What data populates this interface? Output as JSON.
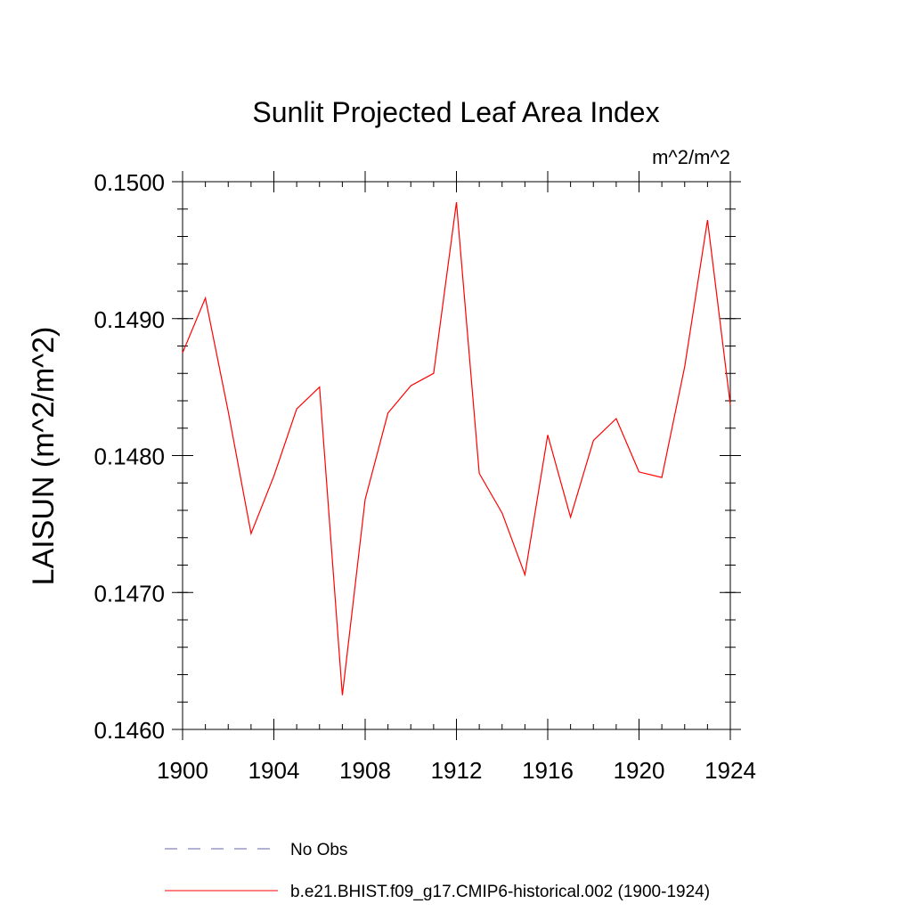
{
  "chart_data": {
    "type": "line",
    "title": "Sunlit Projected Leaf Area Index",
    "units_label": "m^2/m^2",
    "ylabel": "LAISUN  (m^2/m^2)",
    "xlabel": "",
    "xlim": [
      1900,
      1924
    ],
    "ylim": [
      0.146,
      0.15
    ],
    "x_ticks": [
      1900,
      1904,
      1908,
      1912,
      1916,
      1920,
      1924
    ],
    "x_tick_labels": [
      "1900",
      "1904",
      "1908",
      "1912",
      "1916",
      "1920",
      "1924"
    ],
    "y_ticks": [
      0.146,
      0.147,
      0.148,
      0.149,
      0.15
    ],
    "y_tick_labels": [
      "0.1460",
      "0.1470",
      "0.1480",
      "0.1490",
      "0.1500"
    ],
    "grid": false,
    "legend_position": "bottom",
    "series": [
      {
        "name": "No Obs",
        "color": "#6666aa",
        "dash": "dashed",
        "x": [],
        "values": []
      },
      {
        "name": "b.e21.BHIST.f09_g17.CMIP6-historical.002 (1900-1924)",
        "color": "#ff0000",
        "dash": "solid",
        "x": [
          1900,
          1901,
          1902,
          1903,
          1904,
          1905,
          1906,
          1907,
          1908,
          1909,
          1910,
          1911,
          1912,
          1913,
          1914,
          1915,
          1916,
          1917,
          1918,
          1919,
          1920,
          1921,
          1922,
          1923,
          1924
        ],
        "values": [
          0.14875,
          0.14915,
          0.14832,
          0.14743,
          0.14785,
          0.14834,
          0.1485,
          0.14625,
          0.14768,
          0.14831,
          0.14851,
          0.1486,
          0.14985,
          0.14787,
          0.14758,
          0.14713,
          0.14815,
          0.14755,
          0.14811,
          0.14827,
          0.14788,
          0.14784,
          0.14865,
          0.14972,
          0.14837
        ]
      }
    ]
  }
}
